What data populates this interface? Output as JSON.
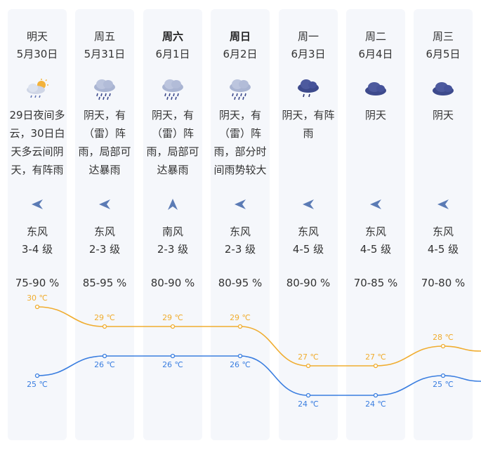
{
  "colors": {
    "high": "#f0ad30",
    "low": "#3a7ee0",
    "icon": "#3d4a8c",
    "wind": "#5b7bb5"
  },
  "days": [
    {
      "day": "明天",
      "date": "5月30日",
      "bold": false,
      "icon": "cloud-sun-rain-icon",
      "desc": [
        "29日夜间多",
        "云，30日白",
        "天多云间阴",
        "天，有阵雨"
      ],
      "wind_dir": "东风",
      "wind_level": "3-4 级",
      "humidity": "75-90 %",
      "wind_icon": "arrow-left-icon"
    },
    {
      "day": "周五",
      "date": "5月31日",
      "bold": false,
      "icon": "thunder-rain-icon",
      "desc": [
        "阴天，有",
        "（雷）阵",
        "雨，局部可",
        "达暴雨"
      ],
      "wind_dir": "东风",
      "wind_level": "2-3 级",
      "humidity": "85-95 %",
      "wind_icon": "arrow-left-icon"
    },
    {
      "day": "周六",
      "date": "6月1日",
      "bold": true,
      "icon": "thunder-rain-icon",
      "desc": [
        "阴天，有",
        "（雷）阵",
        "雨，局部可",
        "达暴雨"
      ],
      "wind_dir": "南风",
      "wind_level": "2-3 级",
      "humidity": "80-90 %",
      "wind_icon": "arrow-up-icon"
    },
    {
      "day": "周日",
      "date": "6月2日",
      "bold": true,
      "icon": "thunder-rain-icon",
      "desc": [
        "阴天，有",
        "（雷）阵",
        "雨，部分时",
        "间雨势较大"
      ],
      "wind_dir": "东风",
      "wind_level": "2-3 级",
      "humidity": "80-95 %",
      "wind_icon": "arrow-left-icon"
    },
    {
      "day": "周一",
      "date": "6月3日",
      "bold": false,
      "icon": "cloud-rain-icon",
      "desc": [
        "阴天，有阵",
        "雨"
      ],
      "wind_dir": "东风",
      "wind_level": "4-5 级",
      "humidity": "80-90 %",
      "wind_icon": "arrow-left-icon"
    },
    {
      "day": "周二",
      "date": "6月4日",
      "bold": false,
      "icon": "overcast-icon",
      "desc": [
        "阴天"
      ],
      "wind_dir": "东风",
      "wind_level": "4-5 级",
      "humidity": "70-85 %",
      "wind_icon": "arrow-left-icon"
    },
    {
      "day": "周三",
      "date": "6月5日",
      "bold": false,
      "icon": "overcast-icon",
      "desc": [
        "阴天"
      ],
      "wind_dir": "东风",
      "wind_level": "4-5 级",
      "humidity": "70-80 %",
      "wind_icon": "arrow-left-icon"
    }
  ],
  "temps": {
    "high": [
      30,
      29,
      29,
      29,
      27,
      27,
      28
    ],
    "low": [
      25,
      26,
      26,
      26,
      24,
      24,
      25
    ],
    "unit": "℃"
  }
}
